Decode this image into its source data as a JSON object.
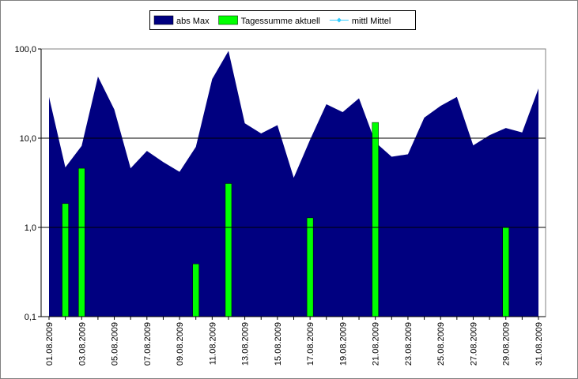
{
  "chart_data": {
    "type": "area_bar_log",
    "categories": [
      "01.08.2009",
      null,
      "03.08.2009",
      null,
      "05.08.2009",
      null,
      "07.08.2009",
      null,
      "09.08.2009",
      null,
      "11.08.2009",
      null,
      "13.08.2009",
      null,
      "15.08.2009",
      null,
      "17.08.2009",
      null,
      "19.08.2009",
      null,
      "21.08.2009",
      null,
      "23.08.2009",
      null,
      "25.08.2009",
      null,
      "27.08.2009",
      null,
      "29.08.2009",
      null,
      "31.08.2009"
    ],
    "series": [
      {
        "name": "abs Max",
        "type": "area",
        "color": "#000080",
        "values": [
          29,
          4.7,
          8.2,
          49,
          21,
          4.6,
          7.2,
          5.4,
          4.2,
          8.0,
          46,
          95,
          14.7,
          11.3,
          14,
          3.6,
          9.6,
          24,
          19.6,
          28,
          9,
          6.2,
          6.6,
          17,
          23,
          29,
          8.3,
          10.8,
          13,
          11.6,
          36
        ]
      },
      {
        "name": "Tagessumme aktuell",
        "type": "bar",
        "color": "#00ff00",
        "values": [
          null,
          1.85,
          4.6,
          null,
          null,
          null,
          null,
          null,
          null,
          0.39,
          null,
          3.1,
          null,
          null,
          null,
          null,
          1.28,
          null,
          null,
          null,
          15,
          null,
          null,
          null,
          null,
          null,
          null,
          null,
          1.0,
          null,
          null
        ]
      },
      {
        "name": "mittl Mittel",
        "type": "line",
        "color": "#33ccff",
        "values": [
          null,
          null,
          null,
          null,
          null,
          null,
          null,
          null,
          null,
          null,
          null,
          null,
          null,
          null,
          null,
          null,
          null,
          null,
          null,
          null,
          null,
          null,
          null,
          null,
          null,
          null,
          null,
          null,
          null,
          null,
          null
        ]
      }
    ],
    "ylim": [
      0.1,
      100
    ],
    "log_y": true,
    "yticks": [
      {
        "value": 0.1,
        "label": "0,1"
      },
      {
        "value": 1,
        "label": "1,0"
      },
      {
        "value": 10,
        "label": "10,0"
      },
      {
        "value": 100,
        "label": "100,0"
      }
    ],
    "grid": true,
    "legend": "top"
  }
}
